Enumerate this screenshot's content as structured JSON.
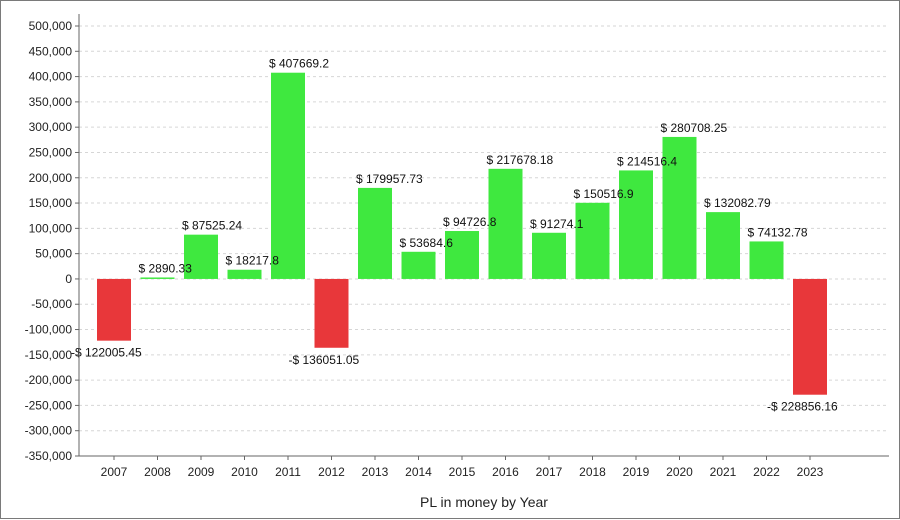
{
  "chart_data": {
    "type": "bar",
    "title": "",
    "xlabel": "PL in money by Year",
    "ylabel": "",
    "ylim": [
      -350000,
      500000
    ],
    "ytick_step": 50000,
    "grid": true,
    "legend": "none",
    "colors": {
      "positive": "#3fe83f",
      "negative": "#e8373a"
    },
    "categories": [
      "2007",
      "2008",
      "2009",
      "2010",
      "2011",
      "2012",
      "2013",
      "2014",
      "2015",
      "2016",
      "2017",
      "2018",
      "2019",
      "2020",
      "2021",
      "2022",
      "2023"
    ],
    "values": [
      -122005.45,
      2890.33,
      87525.24,
      18217.8,
      407669.2,
      -136051.05,
      179957.73,
      53684.6,
      94726.8,
      217678.18,
      91274.1,
      150516.9,
      214516.4,
      280708.25,
      132082.79,
      74132.78,
      -228856.16
    ],
    "data_labels": [
      "-$ 122005.45",
      "$ 2890.33",
      "$ 87525.24",
      "$ 18217.8",
      "$ 407669.2",
      "-$ 136051.05",
      "$ 179957.73",
      "$ 53684.6",
      "$ 94726.8",
      "$ 217678.18",
      "$ 91274.1",
      "$ 150516.9",
      "$ 214516.4",
      "$ 280708.25",
      "$ 132082.79",
      "$ 74132.78",
      "-$ 228856.16"
    ]
  }
}
